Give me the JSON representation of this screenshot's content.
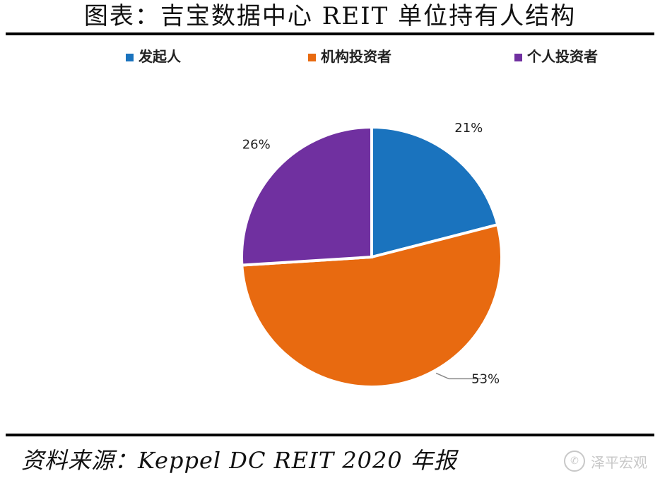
{
  "page": {
    "title": "图表：吉宝数据中心 REIT 单位持有人结构",
    "source": "资料来源：Keppel DC REIT 2020 年报",
    "watermark": "泽平宏观"
  },
  "chart_data": {
    "type": "pie",
    "title": "",
    "legend_position": "top",
    "slices": [
      {
        "label": "发起人",
        "value": 21,
        "value_label": "21%",
        "color": "#1a73be"
      },
      {
        "label": "机构投资者",
        "value": 53,
        "value_label": "53%",
        "color": "#e86a10"
      },
      {
        "label": "个人投资者",
        "value": 26,
        "value_label": "26%",
        "color": "#7030a0"
      }
    ]
  }
}
